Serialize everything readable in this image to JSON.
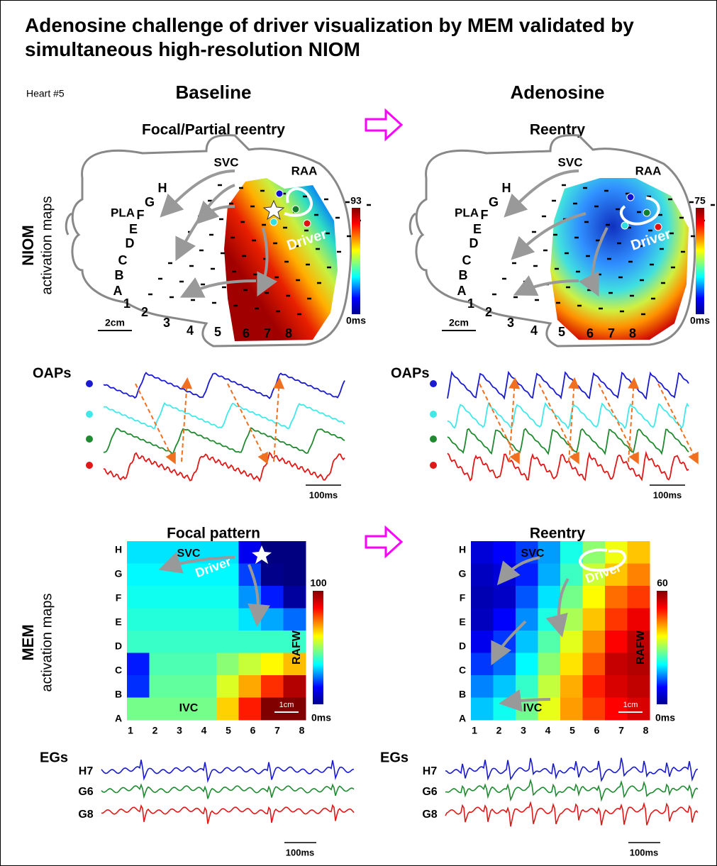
{
  "title": "Adenosine challenge of driver visualization by MEM validated by simultaneous high-resolution NIOM",
  "heart": "Heart #5",
  "row_labels": {
    "niom": [
      "NIOM",
      "activation maps"
    ],
    "mem": [
      "MEM",
      "activation maps"
    ]
  },
  "panels": [
    {
      "heading": "Baseline",
      "niom_title": "Focal/Partial reentry",
      "niom_scale_max": "93",
      "scale_min": "0ms",
      "mem_title": "Focal pattern",
      "mem_scale_max": "100"
    },
    {
      "heading": "Adenosine",
      "niom_title": "Reentry",
      "niom_scale_max": "75",
      "scale_min": "0ms",
      "mem_title": "Reentry",
      "mem_scale_max": "60"
    }
  ],
  "anatomy": {
    "svc": "SVC",
    "raa": "RAA",
    "pla": "PLA",
    "driver": "Driver",
    "rows": [
      "H",
      "G",
      "F",
      "E",
      "D",
      "C",
      "B",
      "A"
    ],
    "cols": [
      "1",
      "2",
      "3",
      "4",
      "5",
      "6",
      "7",
      "8"
    ],
    "scale": "2cm"
  },
  "oap": {
    "label": "OAPs",
    "scale": "100ms"
  },
  "mem": {
    "svc": "SVC",
    "ivc": "IVC",
    "rafw": "RAFW",
    "driver": "Driver",
    "rows": [
      "H",
      "G",
      "F",
      "E",
      "D",
      "C",
      "B",
      "A"
    ],
    "cols": [
      "1",
      "2",
      "3",
      "4",
      "5",
      "6",
      "7",
      "8"
    ],
    "scale": "1cm"
  },
  "egs": {
    "label": "EGs",
    "leads": [
      "H7",
      "G6",
      "G8"
    ],
    "scale": "100ms"
  }
}
